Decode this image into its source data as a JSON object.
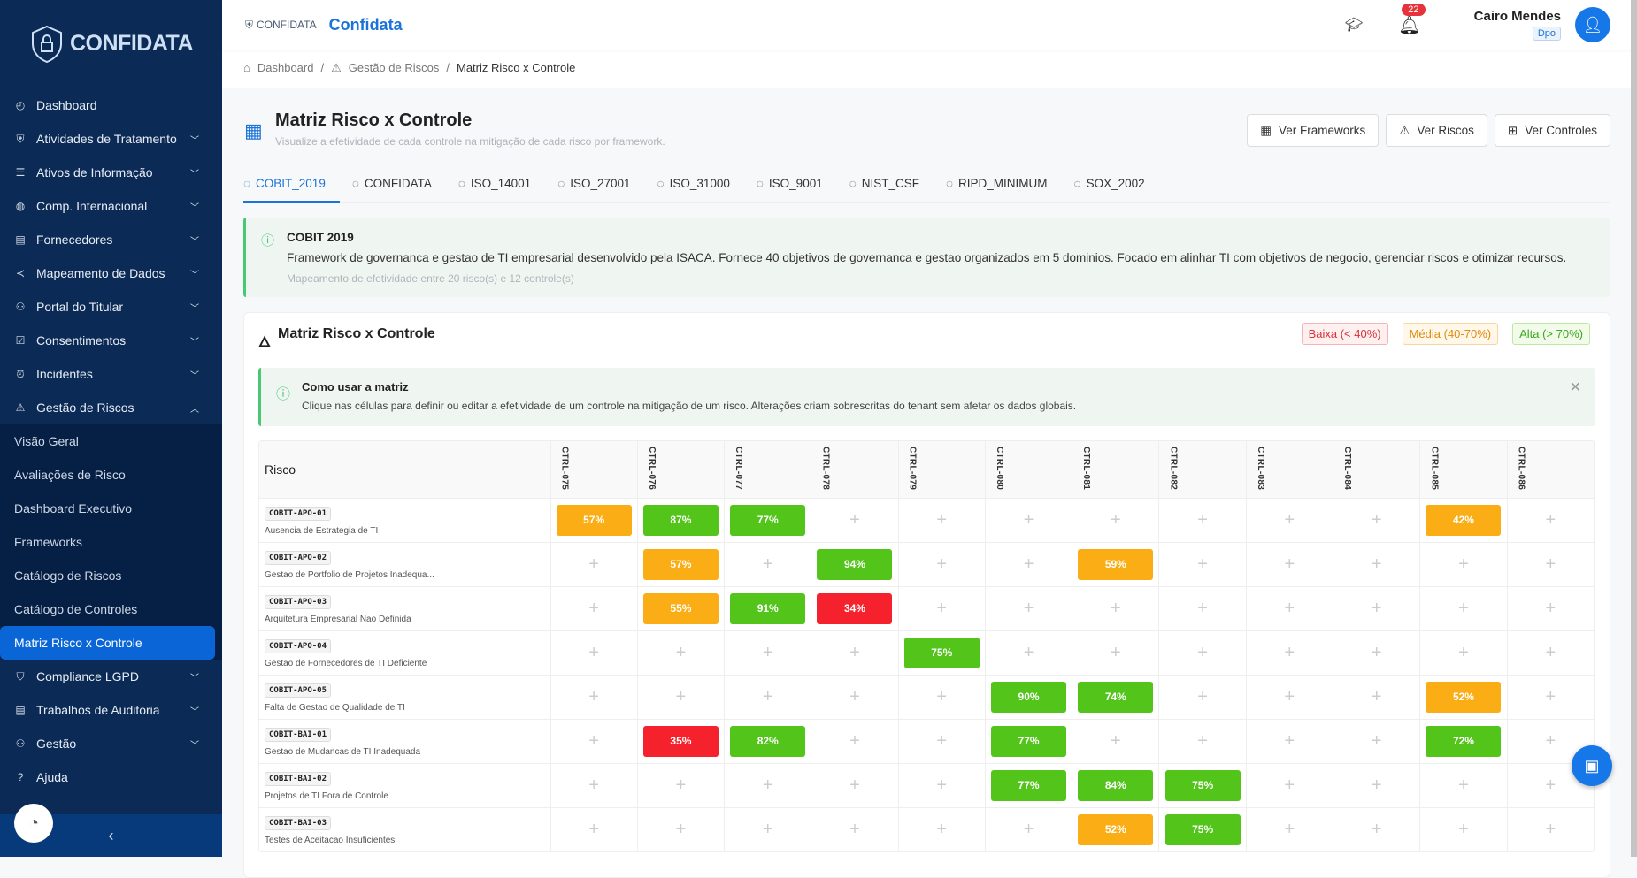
{
  "sidebar": {
    "logo": "CONFIDATA",
    "items": [
      {
        "label": "Dashboard",
        "icon": "gauge-icon",
        "chev": false
      },
      {
        "label": "Atividades de Tratamento",
        "icon": "shield-user-icon",
        "chev": true
      },
      {
        "label": "Ativos de Informação",
        "icon": "server-icon",
        "chev": true
      },
      {
        "label": "Comp. Internacional",
        "icon": "globe-icon",
        "chev": true
      },
      {
        "label": "Fornecedores",
        "icon": "building-icon",
        "chev": true
      },
      {
        "label": "Mapeamento de Dados",
        "icon": "share-icon",
        "chev": true
      },
      {
        "label": "Portal do Titular",
        "icon": "user-icon",
        "chev": true
      },
      {
        "label": "Consentimentos",
        "icon": "checkbox-icon",
        "chev": true
      },
      {
        "label": "Incidentes",
        "icon": "alarm-icon",
        "chev": true
      },
      {
        "label": "Gestão de Riscos",
        "icon": "warning-icon",
        "chev": true
      }
    ],
    "subitems": [
      "Visão Geral",
      "Avaliações de Risco",
      "Dashboard Executivo",
      "Frameworks",
      "Catálogo de Riscos",
      "Catálogo de Controles",
      "Matriz Risco x Controle"
    ],
    "items_after": [
      {
        "label": "Compliance LGPD",
        "icon": "shield-check-icon",
        "chev": true
      },
      {
        "label": "Trabalhos de Auditoria",
        "icon": "audit-icon",
        "chev": true
      },
      {
        "label": "Gestão",
        "icon": "users-icon",
        "chev": true
      },
      {
        "label": "Ajuda",
        "icon": "help-icon",
        "chev": false
      }
    ]
  },
  "header": {
    "logo": "CONFIDATA",
    "brand": "Confidata",
    "notifications": "22",
    "user_name": "Cairo Mendes",
    "user_role": "Dpo"
  },
  "breadcrumb": [
    "Dashboard",
    "Gestão de Riscos",
    "Matriz Risco x Controle"
  ],
  "page": {
    "title": "Matriz Risco x Controle",
    "subtitle": "Visualize a efetividade de cada controle na mitigação de cada risco por framework.",
    "buttons": [
      "Ver Frameworks",
      "Ver Riscos",
      "Ver Controles"
    ]
  },
  "tabs": [
    "COBIT_2019",
    "CONFIDATA",
    "ISO_14001",
    "ISO_27001",
    "ISO_31000",
    "ISO_9001",
    "NIST_CSF",
    "RIPD_MINIMUM",
    "SOX_2002"
  ],
  "active_tab": "COBIT_2019",
  "info": {
    "title": "COBIT 2019",
    "description": "Framework de governanca e gestao de TI empresarial desenvolvido pela ISACA. Fornece 40 objetivos de governanca e gestao organizados em 5 dominios. Focado em alinhar TI com objetivos de negocio, gerenciar riscos e otimizar recursos.",
    "meta": "Mapeamento de efetividade entre 20 risco(s) e 12 controle(s)"
  },
  "matrix": {
    "title": "Matriz Risco x Controle",
    "legend": {
      "low": "Baixa (< 40%)",
      "mid": "Média (40-70%)",
      "high": "Alta (> 70%)"
    },
    "colors": {
      "low": "#f5222d",
      "mid": "#faad14",
      "high": "#52c41a"
    },
    "howto_title": "Como usar a matriz",
    "howto_text": "Clique nas células para definir ou editar a efetividade de um controle na mitigação de um risco. Alterações criam sobrescritas do tenant sem afetar os dados globais.",
    "risk_header": "Risco",
    "controls": [
      "CTRL-075",
      "CTRL-076",
      "CTRL-077",
      "CTRL-078",
      "CTRL-079",
      "CTRL-080",
      "CTRL-081",
      "CTRL-082",
      "CTRL-083",
      "CTRL-084",
      "CTRL-085",
      "CTRL-086"
    ],
    "rows": [
      {
        "code": "COBIT-APO-01",
        "name": "Ausencia de Estrategia de TI",
        "values": [
          57,
          87,
          77,
          null,
          null,
          null,
          null,
          null,
          null,
          null,
          42,
          null
        ]
      },
      {
        "code": "COBIT-APO-02",
        "name": "Gestao de Portfolio de Projetos Inadequa...",
        "values": [
          null,
          57,
          null,
          94,
          null,
          null,
          59,
          null,
          null,
          null,
          null,
          null
        ]
      },
      {
        "code": "COBIT-APO-03",
        "name": "Arquitetura Empresarial Nao Definida",
        "values": [
          null,
          55,
          91,
          34,
          null,
          null,
          null,
          null,
          null,
          null,
          null,
          null
        ]
      },
      {
        "code": "COBIT-APO-04",
        "name": "Gestao de Fornecedores de TI Deficiente",
        "values": [
          null,
          null,
          null,
          null,
          75,
          null,
          null,
          null,
          null,
          null,
          null,
          null
        ]
      },
      {
        "code": "COBIT-APO-05",
        "name": "Falta de Gestao de Qualidade de TI",
        "values": [
          null,
          null,
          null,
          null,
          null,
          90,
          74,
          null,
          null,
          null,
          52,
          null
        ]
      },
      {
        "code": "COBIT-BAI-01",
        "name": "Gestao de Mudancas de TI Inadequada",
        "values": [
          null,
          35,
          82,
          null,
          null,
          77,
          null,
          null,
          null,
          null,
          72,
          null
        ]
      },
      {
        "code": "COBIT-BAI-02",
        "name": "Projetos de TI Fora de Controle",
        "values": [
          null,
          null,
          null,
          null,
          null,
          77,
          84,
          75,
          null,
          null,
          null,
          null
        ]
      },
      {
        "code": "COBIT-BAI-03",
        "name": "Testes de Aceitacao Insuficientes",
        "values": [
          null,
          null,
          null,
          null,
          null,
          null,
          52,
          75,
          null,
          null,
          null,
          null
        ]
      }
    ]
  }
}
